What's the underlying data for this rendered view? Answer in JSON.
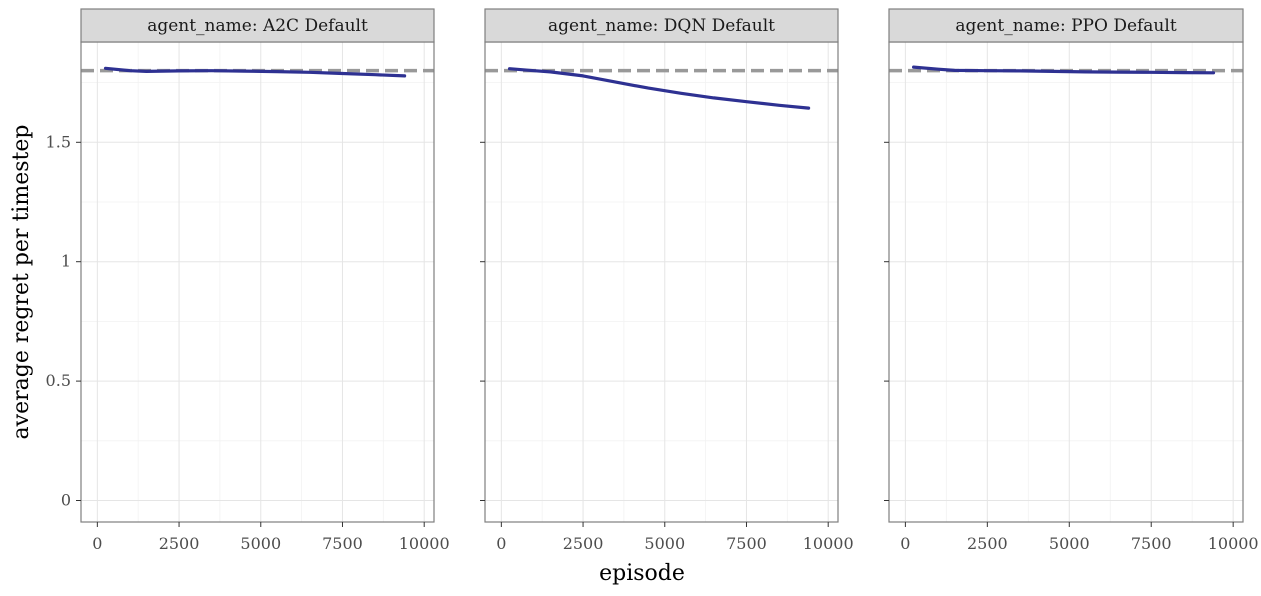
{
  "chart_data": {
    "type": "line",
    "xlabel": "episode",
    "ylabel": "average regret per timestep",
    "xlim": [
      -500,
      10300
    ],
    "ylim": [
      -0.09,
      1.92
    ],
    "x_ticks": [
      0,
      2500,
      5000,
      7500,
      10000
    ],
    "x_tick_labels": [
      "0",
      "2500",
      "5000",
      "7500",
      "10000"
    ],
    "y_ticks": [
      0,
      0.5,
      1,
      1.5
    ],
    "y_tick_labels": [
      "0",
      "0.5",
      "1",
      "1.5"
    ],
    "reference_line": {
      "y": 1.8,
      "style": "dashed",
      "color": "#999999"
    },
    "line_color": "#2e3192",
    "grid": true,
    "facets": [
      {
        "strip_label": "agent_name: A2C Default",
        "x": [
          250,
          1000,
          1500,
          2500,
          3500,
          4500,
          5500,
          6500,
          7500,
          8500,
          9400
        ],
        "y": [
          1.81,
          1.8,
          1.797,
          1.799,
          1.8,
          1.798,
          1.796,
          1.793,
          1.788,
          1.783,
          1.778
        ]
      },
      {
        "strip_label": "agent_name: DQN Default",
        "x": [
          250,
          1000,
          1500,
          2500,
          3500,
          4500,
          5500,
          6500,
          7500,
          8500,
          9400
        ],
        "y": [
          1.808,
          1.8,
          1.795,
          1.778,
          1.752,
          1.727,
          1.705,
          1.686,
          1.67,
          1.655,
          1.643
        ]
      },
      {
        "strip_label": "agent_name: PPO Default",
        "x": [
          250,
          1000,
          1500,
          2500,
          3500,
          4500,
          5500,
          6500,
          7500,
          8500,
          9400
        ],
        "y": [
          1.815,
          1.806,
          1.801,
          1.8,
          1.799,
          1.797,
          1.795,
          1.794,
          1.793,
          1.792,
          1.791
        ]
      }
    ]
  }
}
